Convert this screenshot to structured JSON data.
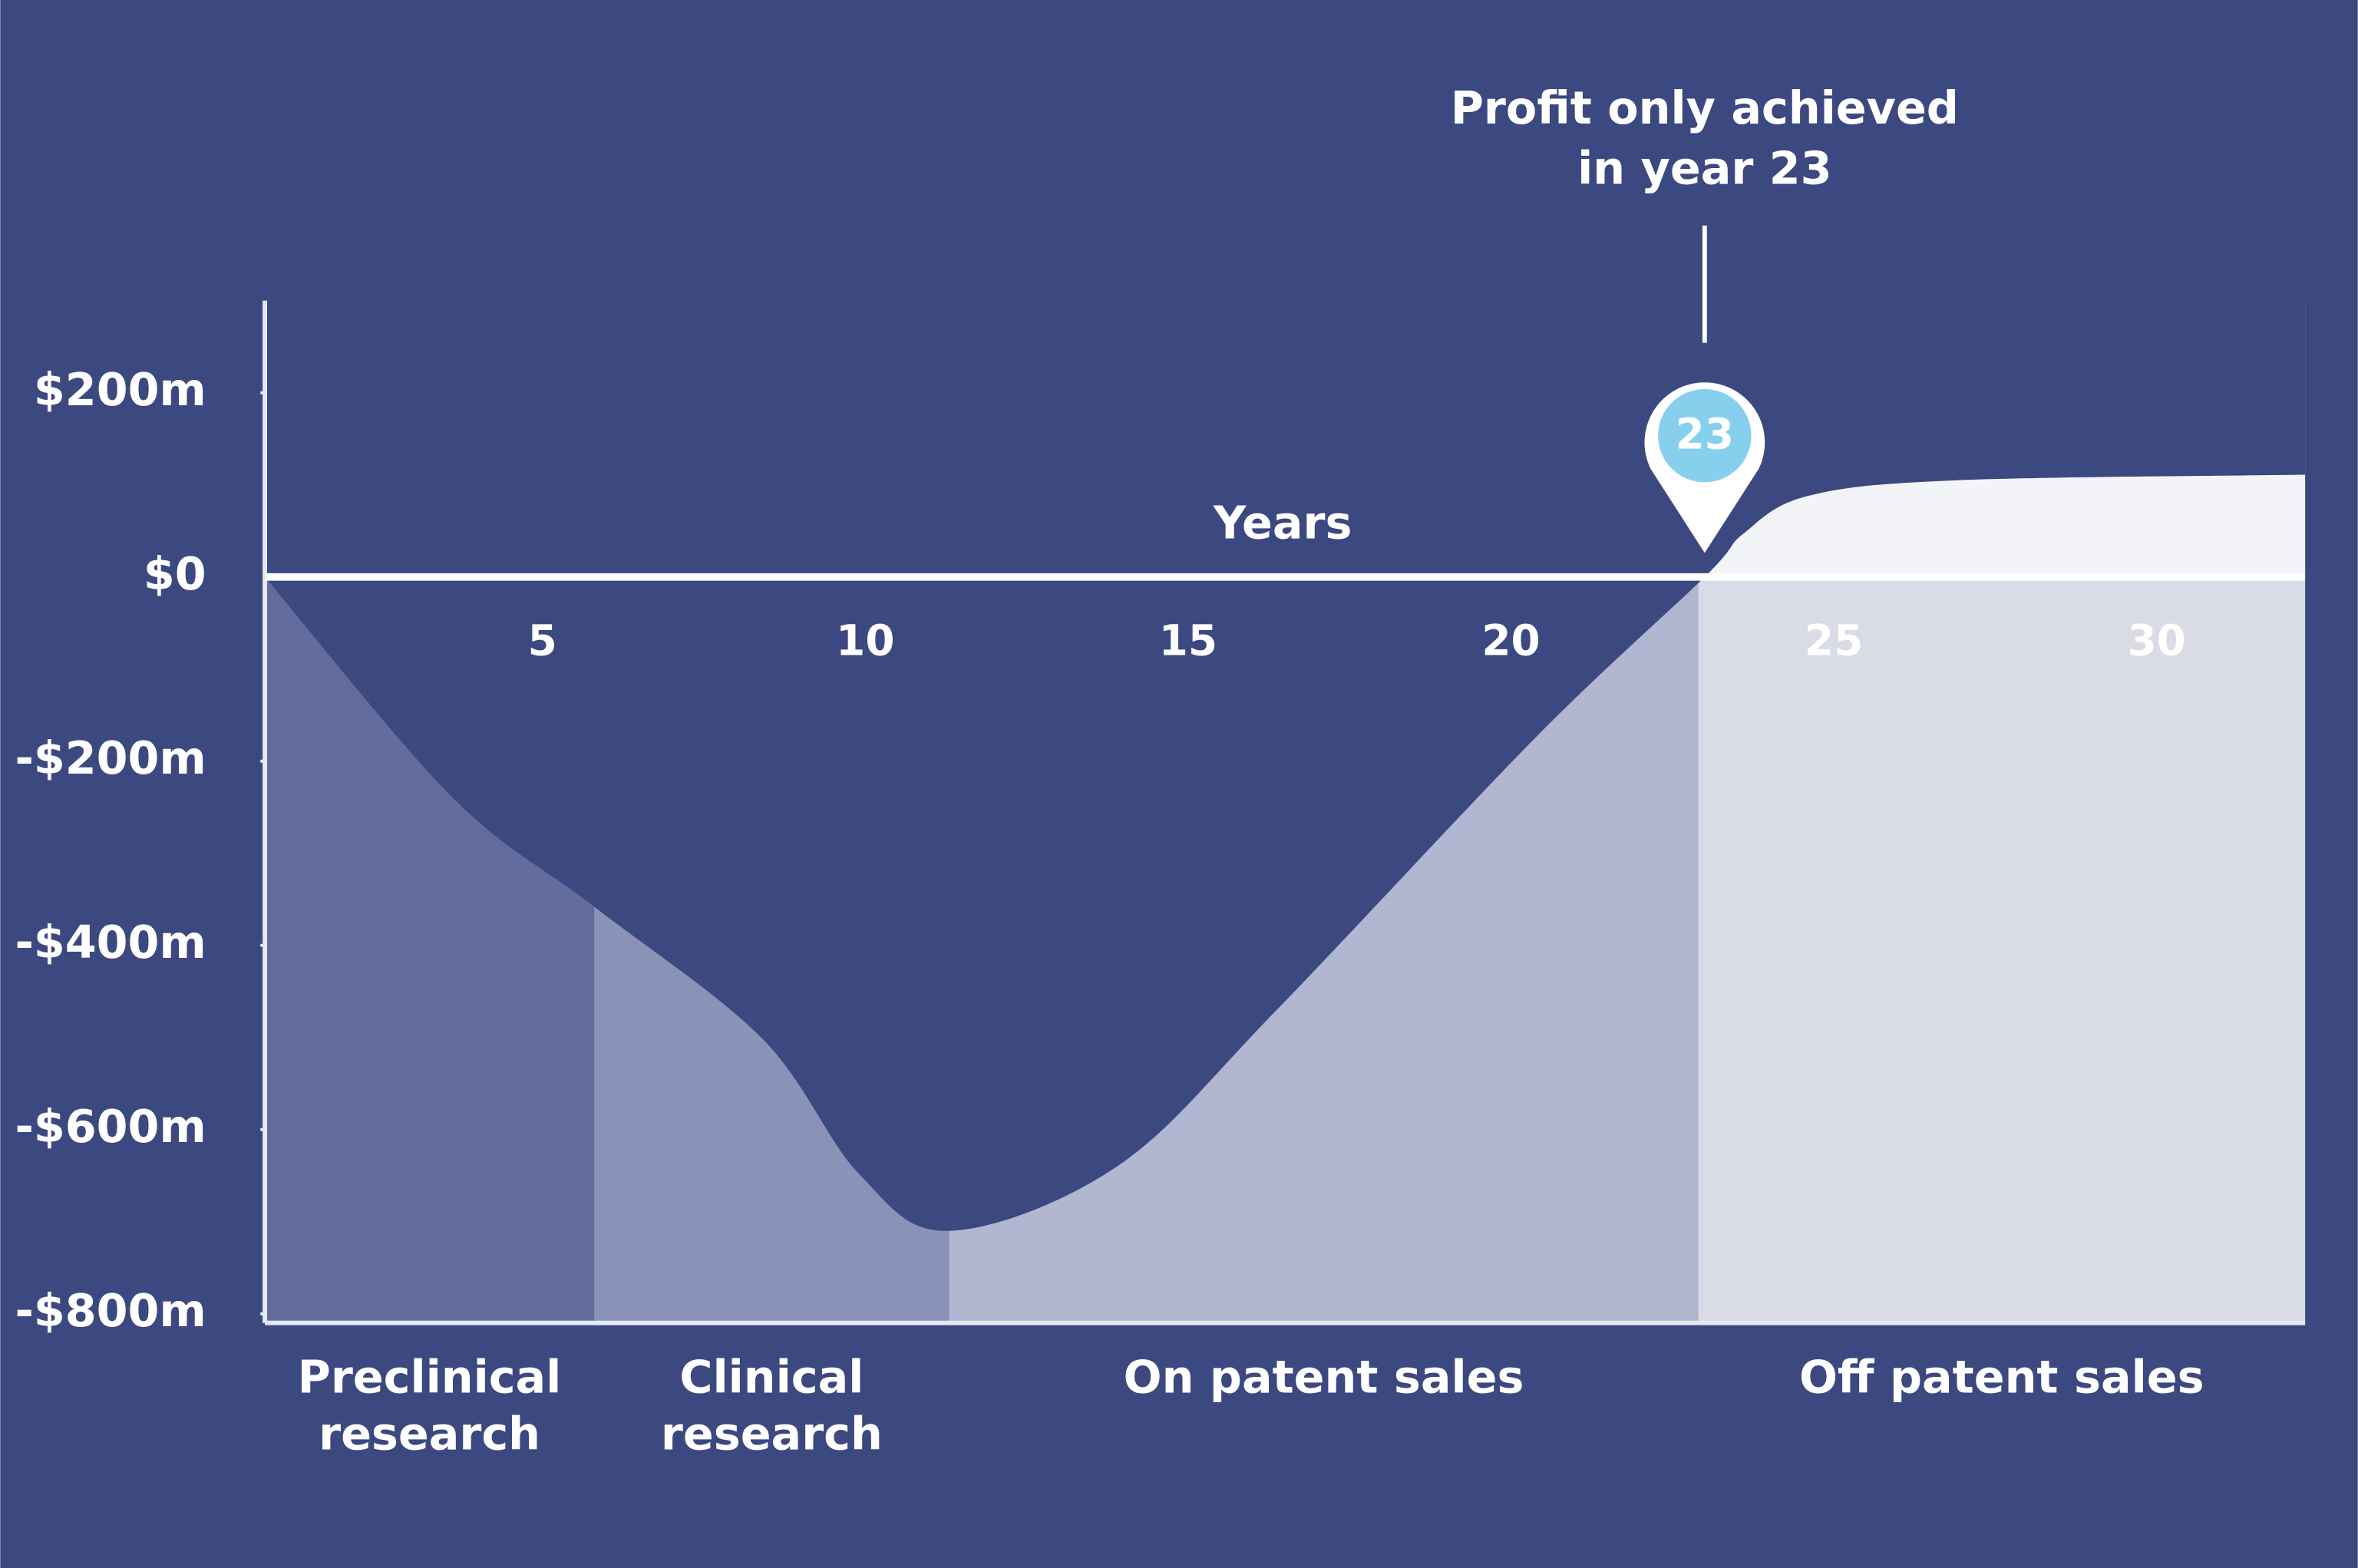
{
  "chart_data": {
    "type": "area",
    "x": [
      0.7,
      3.6,
      5.8,
      8.4,
      9.9,
      11.3,
      13.9,
      16.4,
      20.4,
      23,
      23.6,
      24.6,
      26.9,
      32.3
    ],
    "values": [
      0,
      -239,
      -358,
      -501,
      -648,
      -710,
      -640,
      -468,
      -173,
      0,
      47,
      88,
      105,
      111
    ],
    "xlim": [
      0.7,
      32.3
    ],
    "xticks": [
      5,
      10,
      15,
      20,
      25,
      30
    ],
    "ylim": [
      -810,
      300
    ],
    "yticks": [
      {
        "value": 200,
        "label": "$200m"
      },
      {
        "value": 0,
        "label": "$0"
      },
      {
        "value": -200,
        "label": "-$200m"
      },
      {
        "value": -400,
        "label": "-$400m"
      },
      {
        "value": -600,
        "label": "-$600m"
      },
      {
        "value": -800,
        "label": "-$800m"
      }
    ],
    "x_label": "Years",
    "background": "#3c4880",
    "positive_color": "#f3f4f8",
    "phases": [
      {
        "lines": [
          "Preclinical",
          "research"
        ],
        "start": 0.7,
        "end": 5.8,
        "color": "#636c9c"
      },
      {
        "lines": [
          "Clinical",
          "research"
        ],
        "start": 5.8,
        "end": 11.3,
        "color": "#8a93b7"
      },
      {
        "lines": [
          "On patent sales"
        ],
        "start": 11.3,
        "end": 22.9,
        "color": "#b1b7d0"
      },
      {
        "lines": [
          "Off patent sales"
        ],
        "start": 22.9,
        "end": 32.3,
        "color": "#d9dbe7"
      }
    ],
    "annotation": {
      "lines": [
        "Profit only achieved",
        "in year 23"
      ],
      "x": 23
    }
  }
}
